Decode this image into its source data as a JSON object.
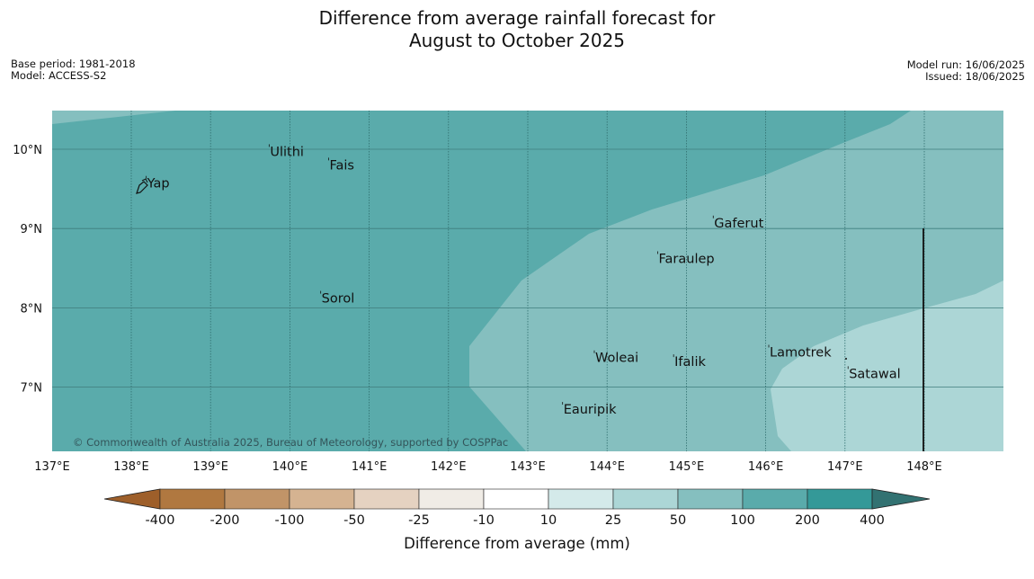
{
  "title": {
    "line1": "Difference from average rainfall forecast for",
    "line2": "August to October 2025"
  },
  "meta": {
    "base_period": "Base period: 1981-2018",
    "model": "Model: ACCESS-S2",
    "model_run": "Model run: 16/06/2025",
    "issued": "Issued: 18/06/2025"
  },
  "map": {
    "lon_range": [
      137,
      149
    ],
    "lat_range": [
      6.2,
      10.5
    ],
    "lon_ticks": [
      {
        "value": 137,
        "label": "137°E"
      },
      {
        "value": 138,
        "label": "138°E"
      },
      {
        "value": 139,
        "label": "139°E"
      },
      {
        "value": 140,
        "label": "140°E"
      },
      {
        "value": 141,
        "label": "141°E"
      },
      {
        "value": 142,
        "label": "142°E"
      },
      {
        "value": 143,
        "label": "143°E"
      },
      {
        "value": 144,
        "label": "144°E"
      },
      {
        "value": 145,
        "label": "145°E"
      },
      {
        "value": 146,
        "label": "146°E"
      },
      {
        "value": 147,
        "label": "147°E"
      },
      {
        "value": 148,
        "label": "148°E"
      }
    ],
    "lat_ticks": [
      {
        "value": 10,
        "label": "10°N"
      },
      {
        "value": 9,
        "label": "9°N"
      },
      {
        "value": 8,
        "label": "8°N"
      },
      {
        "value": 7,
        "label": "7°N"
      }
    ],
    "places": [
      {
        "name": "Ulithi",
        "lon": 139.75,
        "lat": 9.95
      },
      {
        "name": "Fais",
        "lon": 140.5,
        "lat": 9.78
      },
      {
        "name": "Yap",
        "lon": 138.2,
        "lat": 9.55
      },
      {
        "name": "Gaferut",
        "lon": 145.35,
        "lat": 9.05
      },
      {
        "name": "Faraulep",
        "lon": 144.65,
        "lat": 8.6
      },
      {
        "name": "Sorol",
        "lon": 140.4,
        "lat": 8.1
      },
      {
        "name": "Lamotrek",
        "lon": 146.05,
        "lat": 7.42
      },
      {
        "name": "Woleai",
        "lon": 143.85,
        "lat": 7.35
      },
      {
        "name": "Ifalik",
        "lon": 144.85,
        "lat": 7.3
      },
      {
        "name": "Satawal",
        "lon": 147.05,
        "lat": 7.15
      },
      {
        "name": "Eauripik",
        "lon": 143.45,
        "lat": 6.7
      }
    ],
    "copyright": "© Commonwealth of Australia 2025, Bureau of Meteorology, supported by COSPPac",
    "fill_colors": {
      "zone_100_200": "#5aabab",
      "zone_50_100": "#85bfbf",
      "zone_25_50": "#acd6d6"
    }
  },
  "colorbar": {
    "label": "Difference from average (mm)",
    "ticks": [
      "-400",
      "-200",
      "-100",
      "-50",
      "-25",
      "-10",
      "10",
      "25",
      "50",
      "100",
      "200",
      "400"
    ],
    "colors": [
      "#9e5f2a",
      "#b07840",
      "#c19468",
      "#d5b391",
      "#e5d2c1",
      "#f0ece6",
      "#ffffff",
      "#d4eaea",
      "#acd6d6",
      "#85bfbf",
      "#5aabab",
      "#349998",
      "#327272"
    ]
  }
}
